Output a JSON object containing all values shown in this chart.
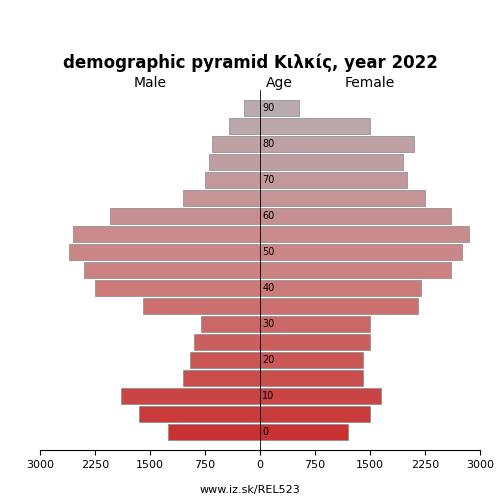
{
  "title": "demographic pyramid Κιλκίς, year 2022",
  "label_male": "Male",
  "label_female": "Female",
  "label_age": "Age",
  "footnote": "www.iz.sk/REL523",
  "age_groups": [
    0,
    5,
    10,
    15,
    20,
    25,
    30,
    35,
    40,
    45,
    50,
    55,
    60,
    65,
    70,
    75,
    80,
    85,
    90
  ],
  "male_values": [
    1250,
    1650,
    1900,
    1050,
    950,
    900,
    800,
    1600,
    2250,
    2400,
    2600,
    2550,
    2050,
    1050,
    750,
    700,
    650,
    420,
    220
  ],
  "female_values": [
    1200,
    1500,
    1650,
    1400,
    1400,
    1500,
    1500,
    2150,
    2200,
    2600,
    2750,
    2850,
    2600,
    2250,
    2000,
    1950,
    2100,
    1500,
    530
  ],
  "xlim": 3000,
  "background_color": "#ffffff",
  "edge_color": "#888888"
}
